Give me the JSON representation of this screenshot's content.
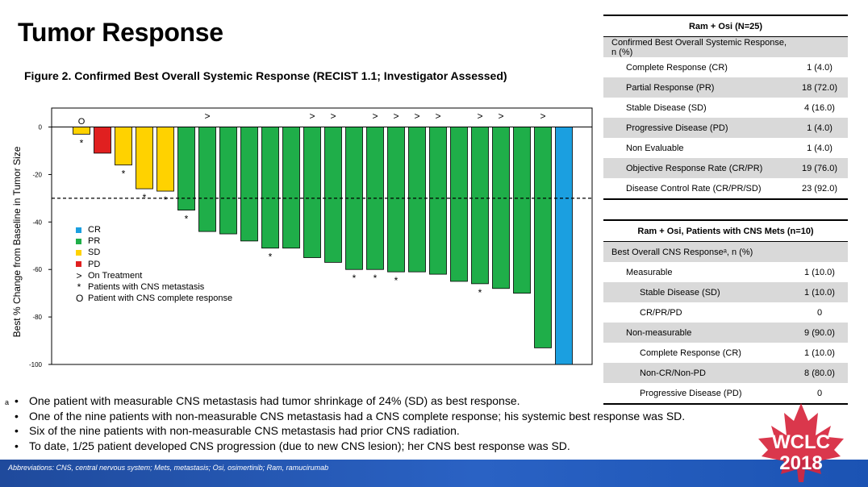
{
  "page": {
    "title": "Tumor Response",
    "figure_title": "Figure 2. Confirmed Best Overall Systemic Response (RECIST 1.1; Investigator Assessed)",
    "bullets": [
      "One patient with measurable CNS metastasis had tumor shrinkage of 24% (SD) as best response.",
      "One of the nine patients with non-measurable CNS metastasis had a CNS complete response; his systemic best response was SD.",
      "Six of the nine patients with non-measurable CNS metastasis had prior CNS radiation.",
      "To date, 1/25 patient developed CNS progression (due to new CNS lesion); her CNS best response was SD."
    ],
    "footnote_marker": "a",
    "bullet_symbol": "•",
    "abbreviations": "Abbreviations: CNS, central nervous system; Mets, metastasis; Osi, osimertinib; Ram, ramucirumab",
    "logo": {
      "line1": "WCLC",
      "line2": "2018",
      "leaf_color": "#d7263d"
    }
  },
  "colors": {
    "CR": "#1b9fe0",
    "PR": "#1fae49",
    "SD": "#ffd200",
    "PD": "#e02020"
  },
  "legend": {
    "CR": "CR",
    "PR": "PR",
    "SD": "SD",
    "PD": "PD",
    "on_treatment_symbol": ">",
    "on_treatment": "On Treatment",
    "cns_symbol": "*",
    "cns": "Patients with CNS metastasis",
    "cns_cr_symbol": "O",
    "cns_cr": "Patient with CNS complete response"
  },
  "table1": {
    "header": "Ram + Osi (N=25)",
    "section": "Confirmed Best Overall Systemic Response, n (%)",
    "rows": [
      {
        "label": "Complete Response (CR)",
        "value": "1 (4.0)"
      },
      {
        "label": "Partial Response (PR)",
        "value": "18 (72.0)"
      },
      {
        "label": "Stable Disease (SD)",
        "value": "4 (16.0)"
      },
      {
        "label": "Progressive Disease (PD)",
        "value": "1 (4.0)"
      },
      {
        "label": "Non Evaluable",
        "value": "1 (4.0)"
      },
      {
        "label": "Objective Response Rate (CR/PR)",
        "value": "19 (76.0)"
      },
      {
        "label": "Disease Control Rate (CR/PR/SD)",
        "value": "23 (92.0)"
      }
    ]
  },
  "table2": {
    "header": "Ram + Osi, Patients with CNS Mets (n=10)",
    "section": "Best Overall CNS Responseᵃ, n (%)",
    "rows": [
      {
        "label": "Measurable",
        "value": "1 (10.0)"
      },
      {
        "label": "Stable Disease (SD)",
        "value": "1 (10.0)"
      },
      {
        "label": "CR/PR/PD",
        "value": "0"
      },
      {
        "label": "Non-measurable",
        "value": "9 (90.0)"
      },
      {
        "label": "Complete Response (CR)",
        "value": "1 (10.0)"
      },
      {
        "label": "Non-CR/Non-PD",
        "value": "8 (80.0)"
      },
      {
        "label": "Progressive Disease (PD)",
        "value": "0"
      }
    ]
  },
  "chart_data": {
    "type": "bar",
    "title": "",
    "xlabel": "",
    "ylabel": "Best % Change from Baseline in Tumor Size",
    "ylim": [
      -100,
      8
    ],
    "yticks": [
      0,
      -20,
      -40,
      -60,
      -80,
      -100
    ],
    "threshold": -30,
    "grid": false,
    "legend_position": "left",
    "values": [
      -3,
      -11,
      -16,
      -26,
      -27,
      -35,
      -44,
      -45,
      -48,
      -51,
      -51,
      -55,
      -57,
      -60,
      -60,
      -61,
      -61,
      -62,
      -65,
      -66,
      -68,
      -70,
      -93,
      -100
    ],
    "response": [
      "SD",
      "PD",
      "SD",
      "SD",
      "SD",
      "PR",
      "PR",
      "PR",
      "PR",
      "PR",
      "PR",
      "PR",
      "PR",
      "PR",
      "PR",
      "PR",
      "PR",
      "PR",
      "PR",
      "PR",
      "PR",
      "PR",
      "PR",
      "CR"
    ],
    "on_treatment": [
      false,
      false,
      false,
      false,
      false,
      false,
      true,
      false,
      false,
      false,
      false,
      true,
      true,
      false,
      true,
      true,
      true,
      true,
      false,
      true,
      true,
      false,
      true,
      false
    ],
    "cns_mets": [
      true,
      false,
      true,
      true,
      true,
      true,
      false,
      false,
      false,
      true,
      false,
      false,
      false,
      true,
      true,
      true,
      false,
      false,
      false,
      true,
      false,
      false,
      false,
      false
    ],
    "cns_cr": [
      true,
      false,
      false,
      false,
      false,
      false,
      false,
      false,
      false,
      false,
      false,
      false,
      false,
      false,
      false,
      false,
      false,
      false,
      false,
      false,
      false,
      false,
      false,
      false
    ]
  }
}
